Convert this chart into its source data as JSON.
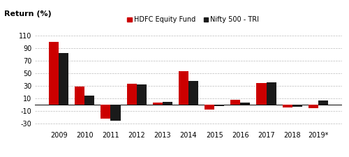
{
  "years": [
    "2009",
    "2010",
    "2011",
    "2012",
    "2013",
    "2014",
    "2015",
    "2016",
    "2017",
    "2018",
    "2019*"
  ],
  "hdfc": [
    100,
    29,
    -22,
    34,
    4,
    54,
    -7,
    8,
    35,
    -4,
    -5
  ],
  "nifty": [
    83,
    15,
    -25,
    32,
    5,
    38,
    -2,
    4,
    36,
    -3,
    7
  ],
  "hdfc_color": "#cc0000",
  "nifty_color": "#1a1a1a",
  "ylabel": "Return (%)",
  "legend_hdfc": "HDFC Equity Fund",
  "legend_nifty": "Nifty 500 - TRI",
  "yticks": [
    -30,
    -10,
    10,
    30,
    50,
    70,
    90,
    110
  ],
  "ylim": [
    -38,
    122
  ],
  "bar_width": 0.38,
  "bg_color": "#ffffff",
  "grid_color": "#bbbbbb"
}
